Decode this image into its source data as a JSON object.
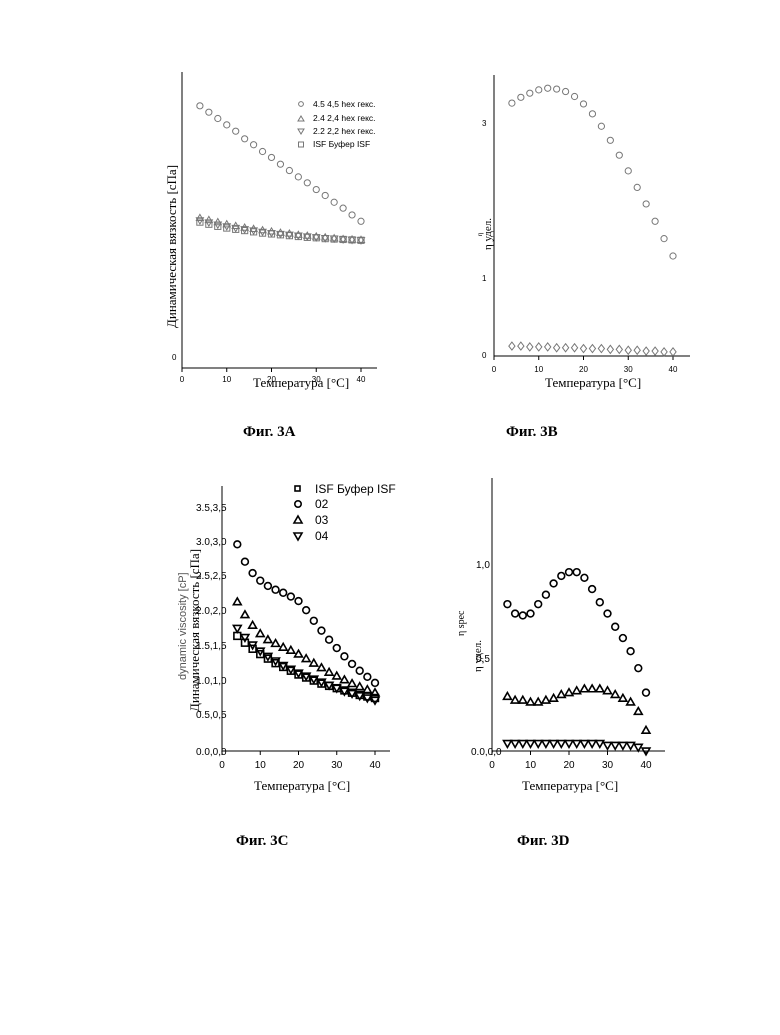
{
  "chart_data": [
    {
      "id": "fig3a",
      "type": "scatter",
      "caption": "Фиг. 3A",
      "xlabel": "Температура [°C]",
      "ylabel": "Динамическая вязкость [сПа]",
      "xlim": [
        0,
        43
      ],
      "x_ticks": [
        "0",
        "10",
        "20",
        "30",
        "40"
      ],
      "y_ticks": [
        "0"
      ],
      "legend_position": "top-right",
      "x": [
        4,
        6,
        8,
        10,
        12,
        14,
        16,
        18,
        20,
        22,
        24,
        26,
        28,
        30,
        32,
        34,
        36,
        38,
        40
      ],
      "series": [
        {
          "name": "4.5 4,5 hex  гекс.",
          "marker": "circle",
          "values": [
            6.2,
            6.05,
            5.9,
            5.75,
            5.6,
            5.42,
            5.28,
            5.12,
            4.98,
            4.82,
            4.67,
            4.52,
            4.38,
            4.22,
            4.08,
            3.92,
            3.78,
            3.62,
            3.47
          ]
        },
        {
          "name": "2.4 2,4 hex  гекс.",
          "marker": "triangle-up",
          "values": [
            3.55,
            3.5,
            3.45,
            3.4,
            3.36,
            3.32,
            3.29,
            3.26,
            3.23,
            3.2,
            3.18,
            3.15,
            3.13,
            3.11,
            3.09,
            3.07,
            3.05,
            3.04,
            3.03
          ]
        },
        {
          "name": "2.2 2,2 hex  гекс.",
          "marker": "triangle-down",
          "values": [
            3.49,
            3.44,
            3.39,
            3.35,
            3.31,
            3.28,
            3.25,
            3.22,
            3.19,
            3.17,
            3.15,
            3.13,
            3.11,
            3.09,
            3.07,
            3.06,
            3.04,
            3.03,
            3.02
          ]
        },
        {
          "name": "ISF  Буфер ISF",
          "marker": "square",
          "values": [
            3.45,
            3.4,
            3.35,
            3.31,
            3.28,
            3.25,
            3.22,
            3.19,
            3.17,
            3.15,
            3.13,
            3.11,
            3.09,
            3.08,
            3.06,
            3.05,
            3.04,
            3.03,
            3.02
          ]
        }
      ],
      "ylim": [
        0,
        7
      ]
    },
    {
      "id": "fig3b",
      "type": "scatter",
      "caption": "Фиг. 3B",
      "xlabel": "Температура [°C]",
      "ylabel": "η удел.",
      "ylabel_overlay": "η",
      "xlim": [
        0,
        43
      ],
      "ylim": [
        0,
        3.4
      ],
      "x_ticks": [
        "0",
        "10",
        "20",
        "30",
        "40"
      ],
      "y_ticks": [
        "0",
        "1",
        "3"
      ],
      "x": [
        4,
        6,
        8,
        10,
        12,
        14,
        16,
        18,
        20,
        22,
        24,
        26,
        28,
        30,
        32,
        34,
        36,
        38,
        40
      ],
      "series": [
        {
          "name": "",
          "marker": "circle",
          "values": [
            3.06,
            3.13,
            3.18,
            3.22,
            3.24,
            3.23,
            3.2,
            3.14,
            3.05,
            2.93,
            2.78,
            2.61,
            2.43,
            2.24,
            2.04,
            1.84,
            1.63,
            1.42,
            1.21
          ]
        },
        {
          "name": "",
          "marker": "diamond",
          "values": [
            0.12,
            0.12,
            0.11,
            0.11,
            0.11,
            0.1,
            0.1,
            0.1,
            0.09,
            0.09,
            0.09,
            0.08,
            0.08,
            0.07,
            0.07,
            0.06,
            0.06,
            0.05,
            0.05
          ]
        }
      ]
    },
    {
      "id": "fig3c",
      "type": "scatter",
      "caption": "Фиг. 3C",
      "xlabel": "Температура [°C]",
      "ylabel": "Динамическая вязкость [сПа]",
      "ylabel_overlay": "dynamic viscosity [cP]",
      "xlim": [
        0,
        43
      ],
      "ylim": [
        0,
        3.5
      ],
      "x_ticks": [
        "0",
        "10",
        "20",
        "30",
        "40"
      ],
      "y_ticks": [
        "0.0,0,0",
        "0.5,0,5",
        "1.0,1,0",
        "1.5,1,5",
        "2.0,2,0",
        "2.5,2,5",
        "3.0,3,0",
        "3.5,3,5"
      ],
      "legend_position": "top-right",
      "x": [
        4,
        6,
        8,
        10,
        12,
        14,
        16,
        18,
        20,
        22,
        24,
        26,
        28,
        30,
        32,
        34,
        36,
        38,
        40
      ],
      "series": [
        {
          "name": "ISF  Буфер ISF",
          "marker": "square",
          "values": [
            1.52,
            1.43,
            1.35,
            1.28,
            1.22,
            1.16,
            1.11,
            1.06,
            1.01,
            0.97,
            0.93,
            0.89,
            0.86,
            0.83,
            0.8,
            0.77,
            0.74,
            0.72,
            0.7
          ]
        },
        {
          "name": "02",
          "marker": "circle",
          "values": [
            2.73,
            2.5,
            2.35,
            2.25,
            2.18,
            2.13,
            2.09,
            2.04,
            1.98,
            1.86,
            1.72,
            1.59,
            1.47,
            1.36,
            1.25,
            1.15,
            1.06,
            0.98,
            0.9
          ]
        },
        {
          "name": "03",
          "marker": "triangle-up",
          "values": [
            1.97,
            1.8,
            1.66,
            1.55,
            1.47,
            1.42,
            1.37,
            1.33,
            1.28,
            1.22,
            1.16,
            1.1,
            1.04,
            0.99,
            0.94,
            0.89,
            0.85,
            0.81,
            0.77
          ]
        },
        {
          "name": "04",
          "marker": "triangle-down",
          "values": [
            1.62,
            1.5,
            1.4,
            1.32,
            1.25,
            1.19,
            1.13,
            1.08,
            1.03,
            0.99,
            0.95,
            0.91,
            0.87,
            0.83,
            0.79,
            0.76,
            0.73,
            0.7,
            0.67
          ]
        }
      ]
    },
    {
      "id": "fig3d",
      "type": "scatter",
      "caption": "Фиг. 3D",
      "xlabel": "Температура [°C]",
      "ylabel": "η удел.",
      "ylabel_overlay": "η spec",
      "xlim": [
        0,
        43
      ],
      "ylim": [
        0,
        1.45
      ],
      "x_ticks": [
        "0",
        "10",
        "20",
        "30",
        "40"
      ],
      "y_ticks": [
        "0.0,0,0",
        "0,5",
        "1,0"
      ],
      "x": [
        4,
        6,
        8,
        10,
        12,
        14,
        16,
        18,
        20,
        22,
        24,
        26,
        28,
        30,
        32,
        34,
        36,
        38,
        40
      ],
      "series": [
        {
          "name": "",
          "marker": "circle",
          "values": [
            0.78,
            0.73,
            0.72,
            0.73,
            0.78,
            0.83,
            0.89,
            0.93,
            0.95,
            0.95,
            0.92,
            0.86,
            0.79,
            0.73,
            0.66,
            0.6,
            0.53,
            0.44,
            0.31
          ]
        },
        {
          "name": "",
          "marker": "triangle-up",
          "values": [
            0.29,
            0.27,
            0.27,
            0.26,
            0.26,
            0.27,
            0.28,
            0.3,
            0.31,
            0.32,
            0.33,
            0.33,
            0.33,
            0.32,
            0.3,
            0.28,
            0.26,
            0.21,
            0.11
          ]
        },
        {
          "name": "",
          "marker": "triangle-down",
          "values": [
            0.04,
            0.04,
            0.04,
            0.04,
            0.04,
            0.04,
            0.04,
            0.04,
            0.04,
            0.04,
            0.04,
            0.04,
            0.04,
            0.03,
            0.03,
            0.03,
            0.03,
            0.02,
            0.0
          ]
        }
      ]
    }
  ],
  "colors": {
    "axis": "#000000",
    "marker_light": "#777777",
    "marker_bold": "#000000"
  }
}
